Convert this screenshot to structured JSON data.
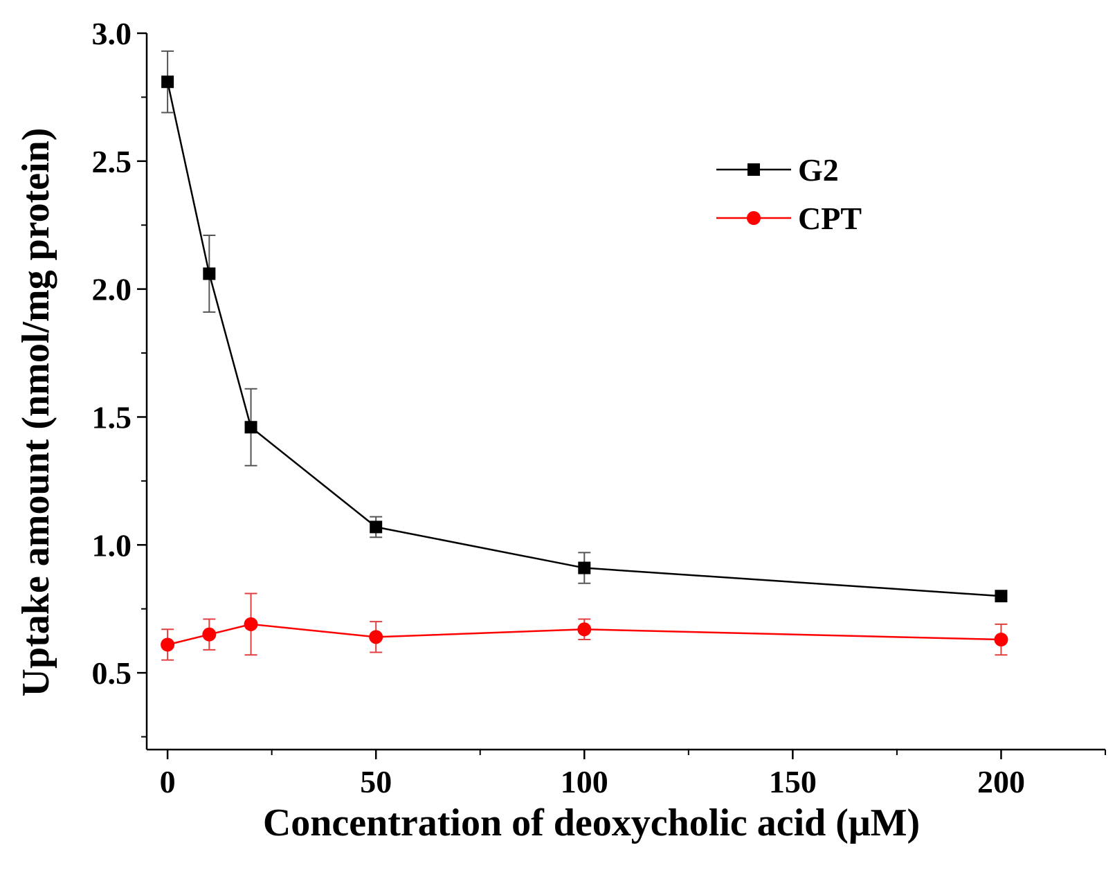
{
  "chart_data": {
    "type": "line",
    "title": "",
    "xlabel": "Concentration of deoxycholic acid (μM)",
    "ylabel": "Uptake amount (nmol/mg protein)",
    "xlim": [
      -5,
      225
    ],
    "ylim": [
      0.2,
      3.0
    ],
    "xticks": [
      0,
      50,
      100,
      150,
      200
    ],
    "xtick_labels": [
      "0",
      "50",
      "100",
      "150",
      "200"
    ],
    "yticks": [
      0.5,
      1.0,
      1.5,
      2.0,
      2.5,
      3.0
    ],
    "ytick_labels": [
      "0.5",
      "1.0",
      "1.5",
      "2.0",
      "2.5",
      "3.0"
    ],
    "grid": false,
    "legend_position": "top-right",
    "x": [
      0,
      10,
      20,
      50,
      100,
      200
    ],
    "series": [
      {
        "name": "G2",
        "color": "#000000",
        "marker": "square",
        "values": [
          2.81,
          2.06,
          1.46,
          1.07,
          0.91,
          0.8
        ],
        "errors": [
          0.12,
          0.15,
          0.15,
          0.04,
          0.06,
          0.01
        ]
      },
      {
        "name": "CPT",
        "color": "#ff0000",
        "marker": "circle",
        "values": [
          0.61,
          0.65,
          0.69,
          0.64,
          0.67,
          0.63
        ],
        "errors": [
          0.06,
          0.06,
          0.12,
          0.06,
          0.04,
          0.06
        ]
      }
    ]
  }
}
